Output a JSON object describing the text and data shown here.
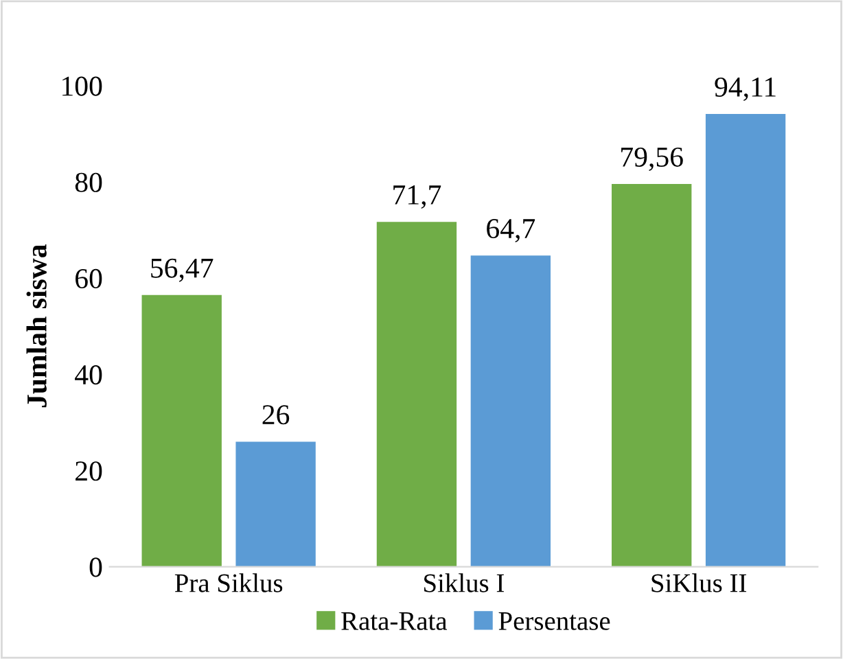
{
  "chart_data": {
    "type": "bar",
    "ylabel": "Jumlah siswa",
    "categories": [
      "Pra Siklus",
      "Siklus I",
      "SiKlus II"
    ],
    "series": [
      {
        "name": "Rata-Rata",
        "color": "#70ad47",
        "values": [
          56.47,
          71.7,
          79.56
        ],
        "value_labels": [
          "56,47",
          "71,7",
          "79,56"
        ]
      },
      {
        "name": "Persentase",
        "color": "#5b9bd5",
        "values": [
          26,
          64.7,
          94.11
        ],
        "value_labels": [
          "26",
          "64,7",
          "94,11"
        ]
      }
    ],
    "ylim": [
      0,
      100
    ],
    "yticks": [
      0,
      20,
      40,
      60,
      80,
      100
    ],
    "grid": false,
    "legend": "bottom"
  }
}
